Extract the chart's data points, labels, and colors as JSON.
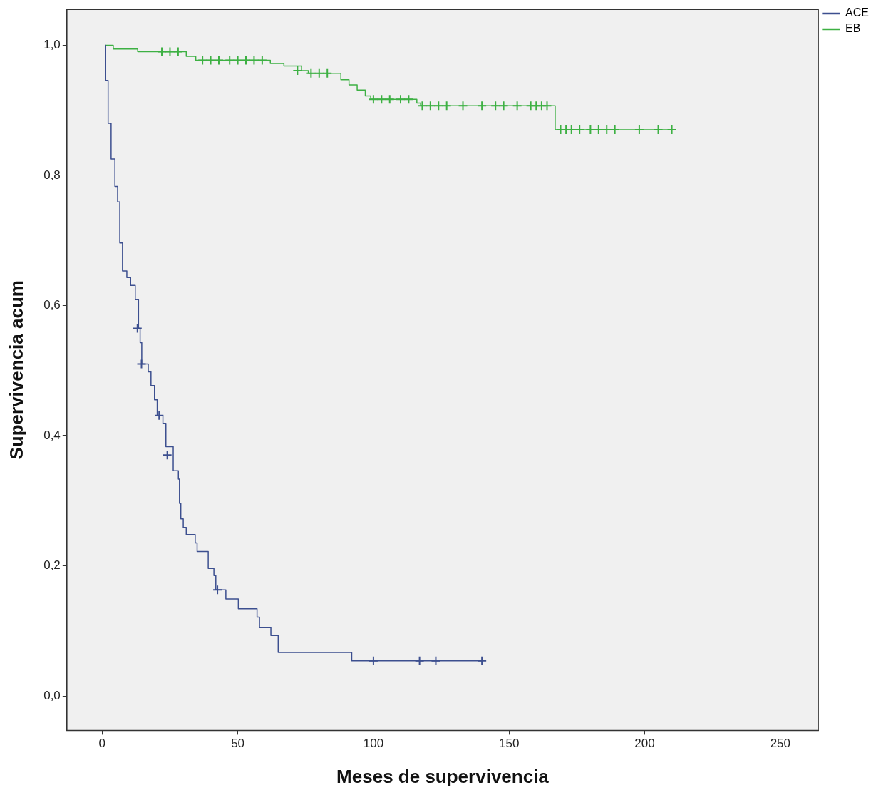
{
  "chart_data": {
    "type": "step",
    "xlabel": "Meses de supervivencia",
    "ylabel": "Supervivencia acum",
    "xlim": [
      -13,
      264
    ],
    "ylim": [
      -0.053,
      1.055
    ],
    "xticks": [
      0,
      50,
      100,
      150,
      200,
      250
    ],
    "yticks": [
      {
        "value": 0,
        "label": "0,0"
      },
      {
        "value": 0.2,
        "label": "0,2"
      },
      {
        "value": 0.4,
        "label": "0,4"
      },
      {
        "value": 0.6,
        "label": "0,6"
      },
      {
        "value": 0.8,
        "label": "0,8"
      },
      {
        "value": 1,
        "label": "1,0"
      }
    ],
    "grid": false,
    "legend": "top right",
    "series": [
      {
        "name": "ACE",
        "color": "#3c4f8f",
        "x": [
          1,
          1.3,
          2.2,
          3.3,
          4.7,
          5.7,
          6.5,
          7.5,
          9.1,
          10.5,
          12.2,
          13.4,
          14,
          14.6,
          17,
          18,
          19.3,
          20.3,
          22.4,
          23.5,
          26.2,
          28.1,
          28.5,
          29,
          29.9,
          31,
          34.3,
          35,
          39.1,
          41.2,
          41.9,
          45.6,
          50.2,
          57.1,
          58,
          62.2,
          64.9,
          92,
          140
        ],
        "values": [
          1,
          0.946,
          0.88,
          0.825,
          0.783,
          0.759,
          0.696,
          0.653,
          0.643,
          0.631,
          0.609,
          0.565,
          0.543,
          0.51,
          0.498,
          0.477,
          0.455,
          0.431,
          0.419,
          0.383,
          0.346,
          0.333,
          0.296,
          0.272,
          0.259,
          0.248,
          0.235,
          0.222,
          0.196,
          0.185,
          0.163,
          0.149,
          0.134,
          0.121,
          0.105,
          0.093,
          0.067,
          0.054,
          0.054
        ]
      },
      {
        "name": "EB",
        "color": "#3db043",
        "x": [
          1,
          4.1,
          13.1,
          31,
          34.5,
          62,
          67,
          73.5,
          76,
          88,
          91,
          94,
          97,
          99,
          116,
          117.4,
          167,
          210
        ],
        "values": [
          1,
          0.994,
          0.99,
          0.983,
          0.977,
          0.972,
          0.968,
          0.961,
          0.957,
          0.947,
          0.939,
          0.931,
          0.922,
          0.917,
          0.911,
          0.907,
          0.87,
          0.87
        ]
      },
      {
        "type": "scatter",
        "marker": "cross",
        "color": "#3c4f8f",
        "x": [
          13,
          14.5,
          21,
          24,
          42.5,
          100,
          117,
          123,
          140
        ],
        "values": [
          0.565,
          0.51,
          0.431,
          0.37,
          0.163,
          0.054,
          0.054,
          0.054,
          0.054
        ]
      },
      {
        "type": "scatter",
        "marker": "cross",
        "color": "#3db043",
        "x": [
          22,
          25,
          28,
          37,
          40,
          43,
          47,
          50,
          53,
          56,
          59,
          72,
          77,
          80,
          83,
          100,
          103,
          106,
          110,
          113,
          118,
          121,
          124,
          127,
          133,
          140,
          145,
          148,
          153,
          158,
          160,
          162,
          164,
          169,
          171,
          173,
          176,
          180,
          183,
          186,
          189,
          198,
          205,
          210
        ],
        "values": [
          0.99,
          0.99,
          0.99,
          0.977,
          0.977,
          0.977,
          0.977,
          0.977,
          0.977,
          0.977,
          0.977,
          0.961,
          0.957,
          0.957,
          0.957,
          0.917,
          0.917,
          0.917,
          0.917,
          0.917,
          0.907,
          0.907,
          0.907,
          0.907,
          0.907,
          0.907,
          0.907,
          0.907,
          0.907,
          0.907,
          0.907,
          0.907,
          0.907,
          0.87,
          0.87,
          0.87,
          0.87,
          0.87,
          0.87,
          0.87,
          0.87,
          0.87,
          0.87,
          0.87
        ]
      }
    ]
  }
}
